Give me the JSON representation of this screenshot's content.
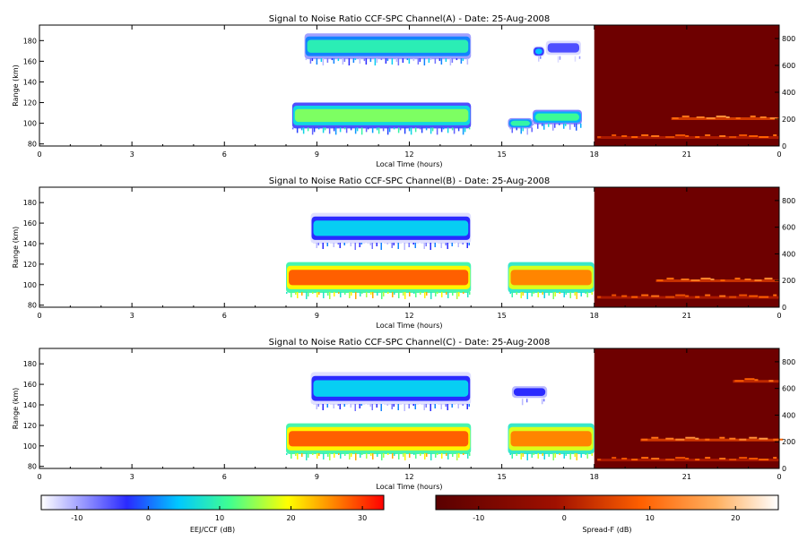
{
  "chart_data": [
    {
      "type": "heatmap",
      "title": "Signal to Noise Ratio CCF-SPC Channel(A) - Date: 25-Aug-2008",
      "xlabel": "Local Time (hours)",
      "ylabel": "Range (km)",
      "xlim": [
        0,
        24
      ],
      "ylim": [
        78,
        195
      ],
      "xticks": [
        "0",
        "3",
        "6",
        "9",
        "12",
        "15",
        "18",
        "21",
        "0"
      ],
      "yticks_left": [
        "80",
        "100",
        "120",
        "140",
        "160",
        "180"
      ],
      "yticks_right": [
        "0",
        "200",
        "400",
        "600",
        "800"
      ],
      "right_axis_range_km": [
        0,
        900
      ],
      "regions": [
        {
          "name": "EEJ/CCF",
          "x_range": [
            8,
            18
          ],
          "colorbar": "left"
        },
        {
          "name": "Spread-F",
          "x_range": [
            18,
            24
          ],
          "colorbar": "right"
        }
      ],
      "echo_layers": [
        {
          "x0": 8.2,
          "x1": 14.0,
          "y0": 95,
          "y1": 120,
          "snr_db": 14
        },
        {
          "x0": 8.6,
          "x1": 14.0,
          "y0": 162,
          "y1": 187,
          "snr_db": 9
        },
        {
          "x0": 15.2,
          "x1": 16.0,
          "y0": 95,
          "y1": 105,
          "snr_db": 10
        },
        {
          "x0": 16.0,
          "x1": 17.6,
          "y0": 99,
          "y1": 113,
          "snr_db": 11
        },
        {
          "x0": 16.0,
          "x1": 16.4,
          "y0": 164,
          "y1": 175,
          "snr_db": 4
        },
        {
          "x0": 16.4,
          "x1": 17.6,
          "y0": 164,
          "y1": 182,
          "snr_db": -5
        }
      ],
      "spread_f_traces": [
        {
          "x0": 18.1,
          "x1": 24.0,
          "y_km": 60,
          "snr_db": 6
        },
        {
          "x0": 20.5,
          "x1": 24.0,
          "y_km": 200,
          "snr_db": 10
        }
      ]
    },
    {
      "type": "heatmap",
      "title": "Signal to Noise Ratio CCF-SPC Channel(B) - Date: 25-Aug-2008",
      "xlabel": "Local Time (hours)",
      "ylabel": "Range (km)",
      "xlim": [
        0,
        24
      ],
      "ylim": [
        78,
        195
      ],
      "xticks": [
        "0",
        "3",
        "6",
        "9",
        "12",
        "15",
        "18",
        "21",
        "0"
      ],
      "yticks_left": [
        "80",
        "100",
        "120",
        "140",
        "160",
        "180"
      ],
      "yticks_right": [
        "0",
        "200",
        "400",
        "600",
        "800"
      ],
      "right_axis_range_km": [
        0,
        900
      ],
      "echo_layers": [
        {
          "x0": 8.0,
          "x1": 14.0,
          "y0": 92,
          "y1": 122,
          "snr_db": 28
        },
        {
          "x0": 8.8,
          "x1": 14.0,
          "y0": 140,
          "y1": 170,
          "snr_db": 5
        },
        {
          "x0": 15.2,
          "x1": 18.0,
          "y0": 92,
          "y1": 122,
          "snr_db": 26
        }
      ],
      "spread_f_traces": [
        {
          "x0": 18.1,
          "x1": 24.0,
          "y_km": 70,
          "snr_db": 6
        },
        {
          "x0": 20.0,
          "x1": 24.0,
          "y_km": 195,
          "snr_db": 9
        }
      ]
    },
    {
      "type": "heatmap",
      "title": "Signal to Noise Ratio CCF-SPC Channel(C) - Date: 25-Aug-2008",
      "xlabel": "Local Time (hours)",
      "ylabel": "Range (km)",
      "xlim": [
        0,
        24
      ],
      "ylim": [
        78,
        195
      ],
      "xticks": [
        "0",
        "3",
        "6",
        "9",
        "12",
        "15",
        "18",
        "21",
        "0"
      ],
      "yticks_left": [
        "80",
        "100",
        "120",
        "140",
        "160",
        "180"
      ],
      "yticks_right": [
        "0",
        "200",
        "400",
        "600",
        "800"
      ],
      "right_axis_range_km": [
        0,
        900
      ],
      "echo_layers": [
        {
          "x0": 8.0,
          "x1": 14.0,
          "y0": 92,
          "y1": 122,
          "snr_db": 28
        },
        {
          "x0": 8.8,
          "x1": 14.0,
          "y0": 140,
          "y1": 172,
          "snr_db": 5
        },
        {
          "x0": 15.2,
          "x1": 18.0,
          "y0": 92,
          "y1": 122,
          "snr_db": 26
        },
        {
          "x0": 15.3,
          "x1": 16.5,
          "y0": 145,
          "y1": 160,
          "snr_db": -3
        }
      ],
      "spread_f_traces": [
        {
          "x0": 18.1,
          "x1": 24.0,
          "y_km": 60,
          "snr_db": 6
        },
        {
          "x0": 19.5,
          "x1": 24.0,
          "y_km": 210,
          "snr_db": 10
        },
        {
          "x0": 22.5,
          "x1": 24.0,
          "y_km": 650,
          "snr_db": 8
        }
      ]
    }
  ],
  "colorbars": [
    {
      "label": "EEJ/CCF (dB)",
      "ticks": [
        "-10",
        "0",
        "10",
        "20",
        "30"
      ],
      "range": [
        -15,
        33
      ],
      "colormap": "jet"
    },
    {
      "label": "Spread-F (dB)",
      "ticks": [
        "-10",
        "0",
        "10",
        "20"
      ],
      "range": [
        -15,
        25
      ],
      "colormap": "hot"
    }
  ],
  "colors": {
    "spread_f_background": "#6e0000",
    "eej_background": "#ffffff"
  }
}
